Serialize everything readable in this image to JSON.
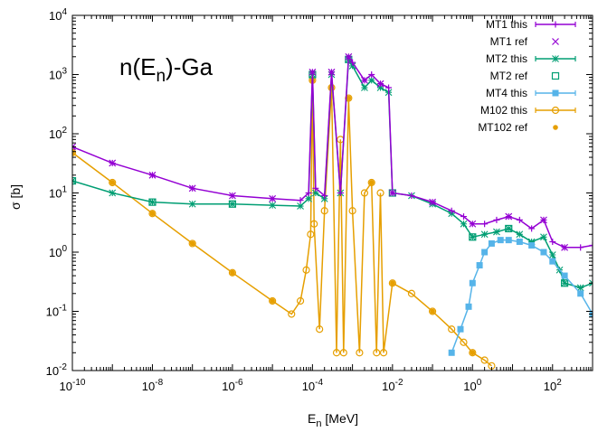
{
  "chart_data": {
    "type": "scatter",
    "title": "n(E_n)-Ga",
    "title_parts": {
      "main1": "n(E",
      "sub": "n",
      "main2": ")-Ga"
    },
    "xlabel": "E_n [MeV]",
    "xlabel_parts": {
      "main": "E",
      "sub": "n",
      "unit": " [MeV]"
    },
    "ylabel": "σ [b]",
    "x_scale": "log",
    "y_scale": "log",
    "xlim": [
      1e-10,
      1000
    ],
    "ylim": [
      0.01,
      10000
    ],
    "grid": false,
    "legend_position": "top-right",
    "x_ticks": [
      {
        "value": 1e-10,
        "base": "10",
        "exp": "-10"
      },
      {
        "value": 1e-08,
        "base": "10",
        "exp": "-8"
      },
      {
        "value": 1e-06,
        "base": "10",
        "exp": "-6"
      },
      {
        "value": 0.0001,
        "base": "10",
        "exp": "-4"
      },
      {
        "value": 0.01,
        "base": "10",
        "exp": "-2"
      },
      {
        "value": 1,
        "base": "10",
        "exp": "0"
      },
      {
        "value": 100,
        "base": "10",
        "exp": "2"
      }
    ],
    "y_ticks": [
      {
        "value": 0.01,
        "base": "10",
        "exp": "-2"
      },
      {
        "value": 0.1,
        "base": "10",
        "exp": "-1"
      },
      {
        "value": 1,
        "base": "10",
        "exp": "0"
      },
      {
        "value": 10,
        "base": "10",
        "exp": "1"
      },
      {
        "value": 100,
        "base": "10",
        "exp": "2"
      },
      {
        "value": 1000,
        "base": "10",
        "exp": "3"
      },
      {
        "value": 10000,
        "base": "10",
        "exp": "4"
      }
    ],
    "series": [
      {
        "name": "MT1 this",
        "color": "#9400d3",
        "marker": "plus",
        "line": true,
        "x": [
          1e-10,
          1e-09,
          1e-08,
          1e-07,
          1e-06,
          1e-05,
          5e-05,
          8e-05,
          0.0001,
          0.00012,
          0.0002,
          0.0003,
          0.0005,
          0.0008,
          0.001,
          0.002,
          0.003,
          0.005,
          0.008,
          0.01,
          0.03,
          0.1,
          0.3,
          0.6,
          1,
          2,
          4,
          8,
          15,
          30,
          60,
          100,
          200,
          500,
          1000
        ],
        "y": [
          60,
          32,
          20,
          12,
          9,
          8,
          7.5,
          10,
          1100,
          12,
          9,
          1100,
          10,
          2000,
          1600,
          800,
          1000,
          700,
          600,
          10,
          9,
          7,
          5,
          4,
          3,
          3,
          3.5,
          4,
          3.5,
          2.5,
          3.5,
          1.5,
          1.2,
          1.2,
          1.3
        ]
      },
      {
        "name": "MT1 ref",
        "color": "#9400d3",
        "marker": "cross",
        "line": false,
        "x": [
          1e-10,
          1e-09,
          1e-08,
          1e-07,
          1e-06,
          1e-05,
          0.0001,
          0.0003,
          0.0008,
          0.002,
          0.005,
          0.01,
          0.1,
          1,
          8,
          60,
          200
        ],
        "y": [
          60,
          32,
          20,
          12,
          9,
          8,
          1100,
          1100,
          2000,
          800,
          700,
          10,
          7,
          3,
          4,
          3.5,
          1.2
        ]
      },
      {
        "name": "MT2 this",
        "color": "#009e73",
        "marker": "star",
        "line": true,
        "x": [
          1e-10,
          1e-09,
          1e-08,
          1e-07,
          1e-06,
          1e-05,
          5e-05,
          8e-05,
          0.0001,
          0.00012,
          0.0002,
          0.0003,
          0.0005,
          0.0008,
          0.001,
          0.002,
          0.003,
          0.005,
          0.008,
          0.01,
          0.03,
          0.1,
          0.3,
          0.6,
          1,
          2,
          4,
          8,
          15,
          30,
          60,
          100,
          150,
          200,
          500,
          1000
        ],
        "y": [
          16,
          10,
          7,
          6.5,
          6.5,
          6.2,
          6,
          8,
          1000,
          10,
          8,
          1000,
          10,
          1800,
          1400,
          600,
          800,
          600,
          500,
          10,
          9,
          6.5,
          4.5,
          3,
          1.8,
          2,
          2.2,
          2.5,
          2,
          1.5,
          1.8,
          0.9,
          0.5,
          0.3,
          0.25,
          0.3
        ]
      },
      {
        "name": "MT2 ref",
        "color": "#009e73",
        "marker": "square-open",
        "line": false,
        "x": [
          1e-10,
          1e-08,
          1e-06,
          0.0001,
          0.0008,
          0.01,
          1,
          8,
          200
        ],
        "y": [
          16,
          7,
          6.5,
          1000,
          1800,
          10,
          1.8,
          2.5,
          0.3
        ]
      },
      {
        "name": "MT4 this",
        "color": "#56b4e9",
        "marker": "square-filled",
        "line": true,
        "x": [
          0.3,
          0.5,
          0.8,
          1,
          1.5,
          2,
          3,
          5,
          8,
          15,
          30,
          60,
          100,
          200,
          500,
          1000
        ],
        "y": [
          0.02,
          0.05,
          0.12,
          0.3,
          0.6,
          1,
          1.4,
          1.6,
          1.6,
          1.5,
          1.3,
          1,
          0.7,
          0.4,
          0.2,
          0.09
        ]
      },
      {
        "name": "M102 this",
        "color": "#e69f00",
        "marker": "circle-open",
        "line": true,
        "x": [
          1e-10,
          1e-09,
          1e-08,
          1e-07,
          1e-06,
          1e-05,
          3e-05,
          5e-05,
          7e-05,
          9e-05,
          0.0001,
          0.00011,
          0.00015,
          0.0002,
          0.0003,
          0.0004,
          0.0005,
          0.0006,
          0.0008,
          0.001,
          0.0015,
          0.002,
          0.003,
          0.004,
          0.005,
          0.006,
          0.01,
          0.03,
          0.1,
          0.3,
          0.6,
          1,
          2,
          3
        ],
        "y": [
          48,
          15,
          4.5,
          1.4,
          0.45,
          0.15,
          0.09,
          0.15,
          0.5,
          2,
          800,
          3,
          0.05,
          5,
          600,
          0.02,
          80,
          0.02,
          400,
          5,
          0.02,
          10,
          15,
          0.02,
          10,
          0.02,
          0.3,
          0.2,
          0.1,
          0.05,
          0.03,
          0.02,
          0.015,
          0.012
        ]
      },
      {
        "name": "MT102 ref",
        "color": "#e69f00",
        "marker": "dot",
        "line": false,
        "x": [
          1e-10,
          1e-09,
          1e-08,
          1e-07,
          1e-06,
          1e-05,
          0.0001,
          0.0003,
          0.0008,
          0.003,
          0.01,
          0.1,
          1
        ],
        "y": [
          48,
          15,
          4.5,
          1.4,
          0.45,
          0.15,
          800,
          600,
          400,
          15,
          0.3,
          0.1,
          0.02
        ]
      }
    ]
  }
}
